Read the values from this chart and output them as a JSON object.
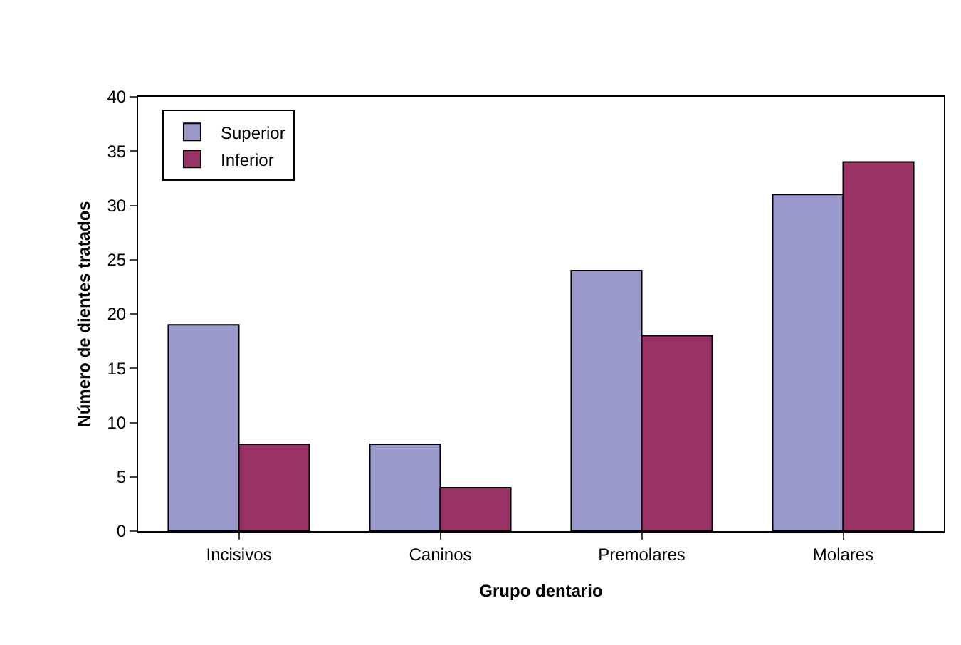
{
  "chart_data": {
    "type": "bar",
    "xlabel": "Grupo dentario",
    "ylabel": "Número de dientes tratados",
    "categories": [
      "Incisivos",
      "Caninos",
      "Premolares",
      "Molares"
    ],
    "series": [
      {
        "name": "Superior",
        "color": "#9999cc",
        "values": [
          19,
          8,
          24,
          31
        ]
      },
      {
        "name": "Inferior",
        "color": "#993366",
        "values": [
          8,
          4,
          18,
          34
        ]
      }
    ],
    "ylim": [
      0,
      40
    ],
    "yticks": [
      0,
      5,
      10,
      15,
      20,
      25,
      30,
      35,
      40
    ],
    "grid": false,
    "legend": "top left"
  }
}
